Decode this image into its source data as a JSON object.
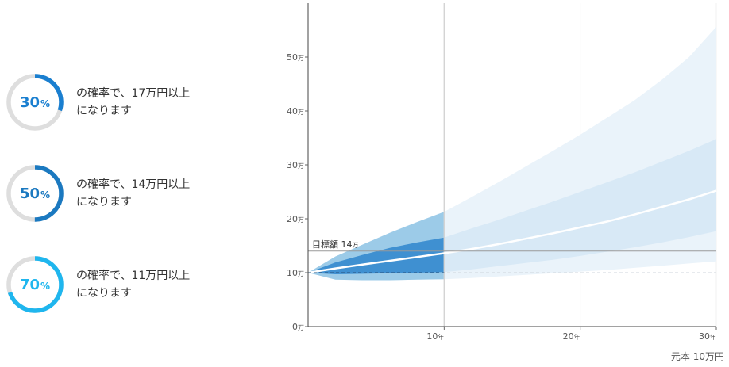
{
  "probabilities": [
    {
      "value": 30,
      "unit": "%",
      "text_line1": "の確率で、17万円以上",
      "text_line2": "になります",
      "color": "#1a7fd0"
    },
    {
      "value": 50,
      "unit": "%",
      "text_line1": "の確率で、14万円以上",
      "text_line2": "になります",
      "color": "#1b79c0"
    },
    {
      "value": 70,
      "unit": "%",
      "text_line1": "の確率で、11万円以上",
      "text_line2": "になります",
      "color": "#1fb6ee"
    }
  ],
  "chart_data": {
    "type": "area",
    "x_ticks": [
      {
        "value": 10,
        "label": "10",
        "unit": "年"
      },
      {
        "value": 20,
        "label": "20",
        "unit": "年"
      },
      {
        "value": 30,
        "label": "30",
        "unit": "年"
      }
    ],
    "y_ticks": [
      {
        "value": 0,
        "label": "0",
        "unit": "万"
      },
      {
        "value": 10,
        "label": "10",
        "unit": "万"
      },
      {
        "value": 20,
        "label": "20",
        "unit": "万"
      },
      {
        "value": 30,
        "label": "30",
        "unit": "万"
      },
      {
        "value": 40,
        "label": "40",
        "unit": "万"
      },
      {
        "value": 50,
        "label": "50",
        "unit": "万"
      }
    ],
    "xlim": [
      0,
      30
    ],
    "ylim": [
      0,
      60
    ],
    "x": [
      0,
      2,
      4,
      6,
      8,
      10,
      12,
      14,
      16,
      18,
      20,
      22,
      24,
      26,
      28,
      30
    ],
    "median": [
      10,
      10.8,
      11.5,
      12.2,
      12.9,
      13.6,
      14.4,
      15.3,
      16.3,
      17.3,
      18.4,
      19.5,
      20.8,
      22.2,
      23.6,
      25.2
    ],
    "inner_upper": [
      10,
      11.9,
      13.3,
      14.6,
      15.6,
      16.5,
      18.2,
      19.8,
      21.5,
      23.2,
      25,
      26.8,
      28.6,
      30.6,
      32.6,
      34.8
    ],
    "inner_lower": [
      10,
      9.7,
      9.8,
      9.9,
      10,
      10.1,
      10.6,
      11.2,
      11.8,
      12.4,
      13.1,
      13.9,
      14.7,
      15.6,
      16.6,
      17.7
    ],
    "outer_upper": [
      10,
      13,
      15.2,
      17.4,
      19.4,
      21.3,
      24,
      26.8,
      29.7,
      32.6,
      35.6,
      38.8,
      42,
      45.8,
      50,
      55.6
    ],
    "outer_lower": [
      10,
      8.7,
      8.6,
      8.6,
      8.7,
      8.8,
      9,
      9.3,
      9.6,
      9.9,
      10.2,
      10.5,
      10.9,
      11.3,
      11.7,
      12.1
    ],
    "target": {
      "value": 14,
      "label": "目標額",
      "value_text": "14",
      "unit": "万"
    },
    "principal": {
      "value": 10,
      "label": "元本 10万円"
    },
    "highlight_until": 10,
    "colors": {
      "outer_light": "#eaf3fa",
      "inner_light": "#d8e9f6",
      "outer_dark": "#9ccbe8",
      "inner_dark": "#3f90d1",
      "median": "#ffffff",
      "target_line": "#999999"
    }
  }
}
